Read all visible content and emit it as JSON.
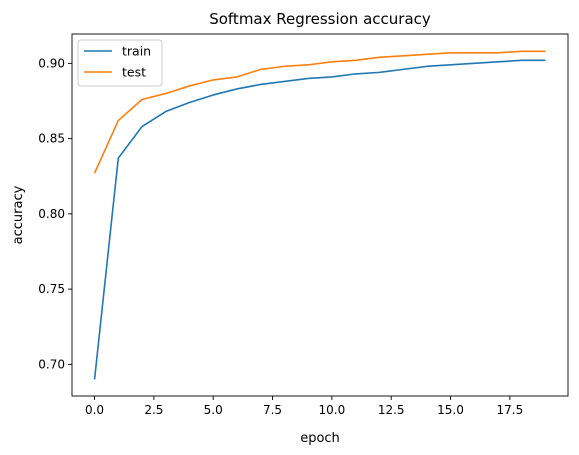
{
  "chart_data": {
    "type": "line",
    "title": "Softmax Regression accuracy",
    "xlabel": "epoch",
    "ylabel": "accuracy",
    "xlim": [
      -0.95,
      19.95
    ],
    "ylim": [
      0.679,
      0.9195
    ],
    "xticks": [
      0.0,
      2.5,
      5.0,
      7.5,
      10.0,
      12.5,
      15.0,
      17.5
    ],
    "xtick_labels": [
      "0.0",
      "2.5",
      "5.0",
      "7.5",
      "10.0",
      "12.5",
      "15.0",
      "17.5"
    ],
    "yticks": [
      0.7,
      0.75,
      0.8,
      0.85,
      0.9
    ],
    "ytick_labels": [
      "0.70",
      "0.75",
      "0.80",
      "0.85",
      "0.90"
    ],
    "grid": false,
    "legend_position": "top-left",
    "x": [
      0,
      1,
      2,
      3,
      4,
      5,
      6,
      7,
      8,
      9,
      10,
      11,
      12,
      13,
      14,
      15,
      16,
      17,
      18,
      19
    ],
    "series": [
      {
        "name": "train",
        "color": "#1f77b4",
        "values": [
          0.69,
          0.837,
          0.858,
          0.868,
          0.874,
          0.879,
          0.883,
          0.886,
          0.888,
          0.89,
          0.891,
          0.893,
          0.894,
          0.896,
          0.898,
          0.899,
          0.9,
          0.901,
          0.902,
          0.902
        ]
      },
      {
        "name": "test",
        "color": "#ff7f0e",
        "values": [
          0.827,
          0.862,
          0.876,
          0.88,
          0.885,
          0.889,
          0.891,
          0.896,
          0.898,
          0.899,
          0.901,
          0.902,
          0.904,
          0.905,
          0.906,
          0.907,
          0.907,
          0.907,
          0.908,
          0.908
        ]
      }
    ]
  }
}
